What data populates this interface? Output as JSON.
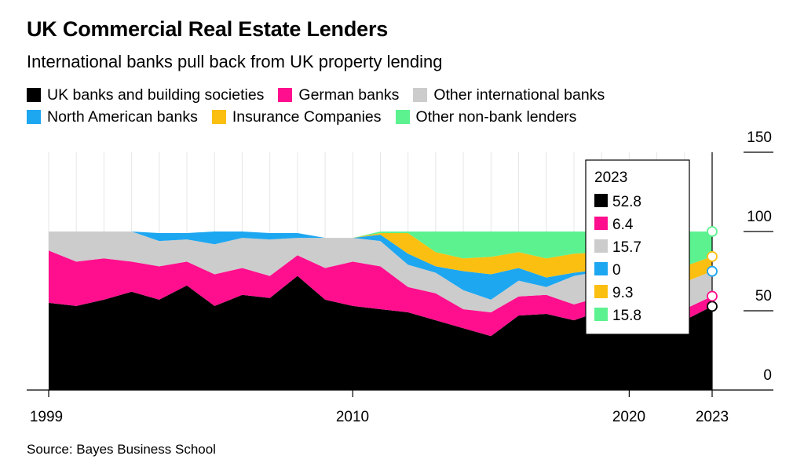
{
  "title": "UK Commercial Real Estate Lenders",
  "subtitle": "International banks pull back from UK property lending",
  "source": "Source: Bayes Business School",
  "legend": [
    {
      "label": "UK banks and building societies",
      "color": "#000000"
    },
    {
      "label": "German banks",
      "color": "#ff0f8d"
    },
    {
      "label": "Other international banks",
      "color": "#cccccc"
    },
    {
      "label": "North American banks",
      "color": "#1da7f1"
    },
    {
      "label": "Insurance Companies",
      "color": "#fbbf12"
    },
    {
      "label": "Other non-bank lenders",
      "color": "#5cf28f"
    }
  ],
  "tooltip": {
    "year": "2023",
    "values": [
      "52.8",
      "6.4",
      "15.7",
      "0",
      "9.3",
      "15.8"
    ]
  },
  "chart_data": {
    "type": "area",
    "stacked": true,
    "title": "UK Commercial Real Estate Lenders",
    "subtitle": "International banks pull back from UK property lending",
    "x": [
      1999,
      2000,
      2001,
      2002,
      2003,
      2004,
      2005,
      2006,
      2007,
      2008,
      2009,
      2010,
      2011,
      2012,
      2013,
      2014,
      2015,
      2016,
      2017,
      2018,
      2019,
      2020,
      2021,
      2022,
      2023
    ],
    "x_ticks": [
      "1999",
      "2010",
      "2020",
      "2023"
    ],
    "y_ticks": [
      "0",
      "50",
      "100",
      "150"
    ],
    "ylim": [
      0,
      150
    ],
    "axis_position": "right",
    "series": [
      {
        "name": "UK banks and building societies",
        "color": "#000000",
        "values": [
          55,
          53,
          57,
          62,
          57,
          66,
          53,
          60,
          58,
          72,
          57,
          53,
          51,
          49,
          44,
          39,
          34,
          47,
          48,
          44,
          50,
          46,
          45,
          44,
          52.8
        ]
      },
      {
        "name": "German banks",
        "color": "#ff0f8d",
        "values": [
          33,
          28,
          26,
          19,
          21,
          15,
          20,
          17,
          14,
          13,
          20,
          28,
          27,
          16,
          17,
          12,
          15,
          12,
          12,
          10,
          9,
          8,
          8,
          7,
          6.4
        ]
      },
      {
        "name": "Other international banks",
        "color": "#cccccc",
        "values": [
          12,
          19,
          17,
          19,
          16,
          14,
          19,
          19,
          23,
          11,
          19,
          15,
          16,
          14,
          13,
          12,
          8,
          10,
          5,
          18,
          16,
          17,
          17,
          17,
          15.7
        ]
      },
      {
        "name": "North American banks",
        "color": "#1da7f1",
        "values": [
          0,
          0,
          0,
          0,
          5,
          4,
          8,
          4,
          4,
          3,
          0,
          0,
          4,
          7,
          4,
          12,
          16,
          8,
          6,
          2,
          1,
          1,
          1,
          0,
          0
        ]
      },
      {
        "name": "Insurance Companies",
        "color": "#fbbf12",
        "values": [
          0,
          0,
          0,
          0,
          0,
          0,
          0,
          0,
          0,
          0,
          0,
          0,
          1,
          13,
          9,
          8,
          11,
          10,
          12,
          12,
          11,
          12,
          11,
          10,
          9.3
        ]
      },
      {
        "name": "Other non-bank lenders",
        "color": "#5cf28f",
        "values": [
          0,
          0,
          0,
          0,
          0,
          0,
          0,
          0,
          0,
          0,
          0,
          0,
          1,
          1,
          13,
          17,
          16,
          13,
          17,
          14,
          13,
          16,
          18,
          22,
          15.8
        ]
      }
    ]
  }
}
